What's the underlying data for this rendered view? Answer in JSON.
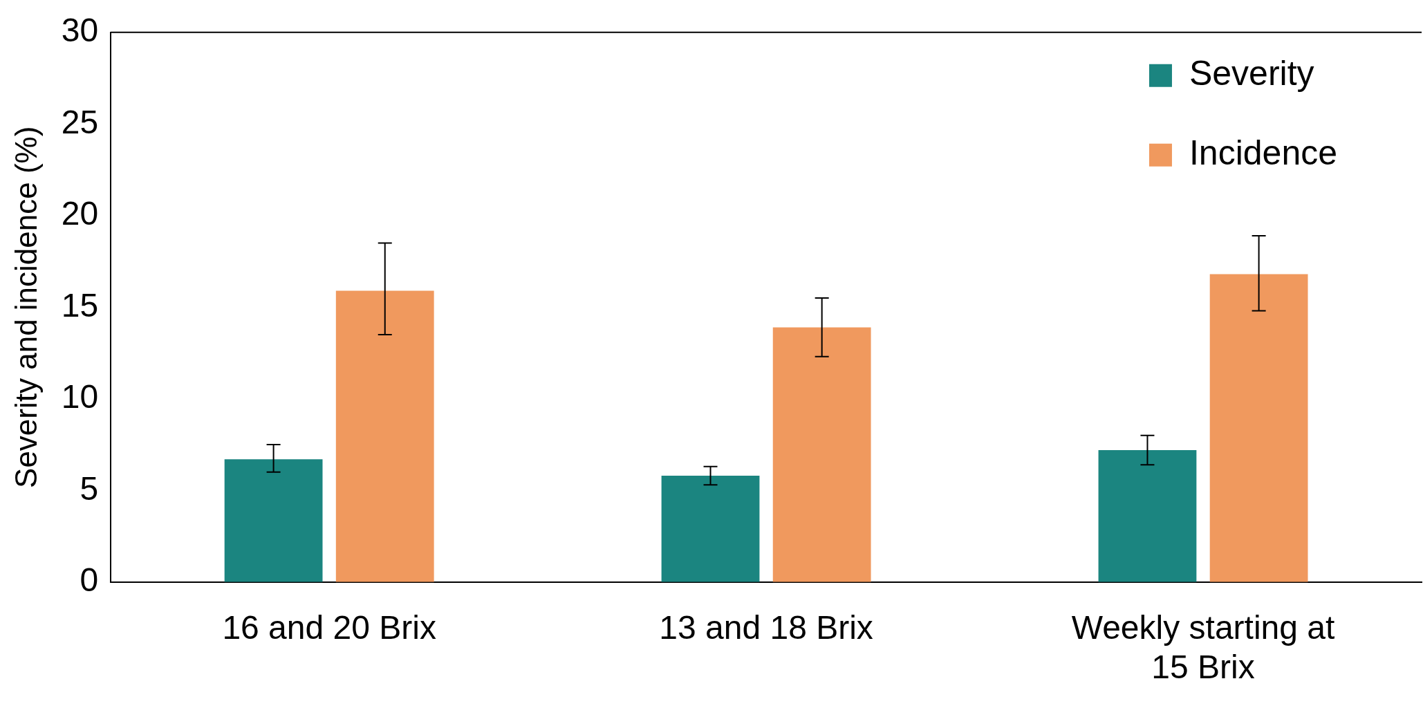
{
  "chart_data": {
    "type": "bar",
    "ylabel": "Severity and incidence (%)",
    "categories": [
      "16 and 20 Brix",
      "13 and 18 Brix",
      "Weekly starting at 15 Brix"
    ],
    "series": [
      {
        "name": "Severity",
        "color": "#1b8580",
        "values": [
          6.7,
          5.8,
          7.2
        ],
        "errors": [
          [
            6.0,
            7.5
          ],
          [
            5.3,
            6.3
          ],
          [
            6.4,
            8.0
          ]
        ]
      },
      {
        "name": "Incidence",
        "color": "#f0995e",
        "values": [
          15.9,
          13.9,
          16.8
        ],
        "errors": [
          [
            13.5,
            18.5
          ],
          [
            12.3,
            15.5
          ],
          [
            14.8,
            18.9
          ]
        ]
      }
    ],
    "ylim": [
      0,
      30
    ],
    "yticks": [
      0,
      5,
      10,
      15,
      20,
      25,
      30
    ],
    "grid": false,
    "legend": "top right"
  }
}
